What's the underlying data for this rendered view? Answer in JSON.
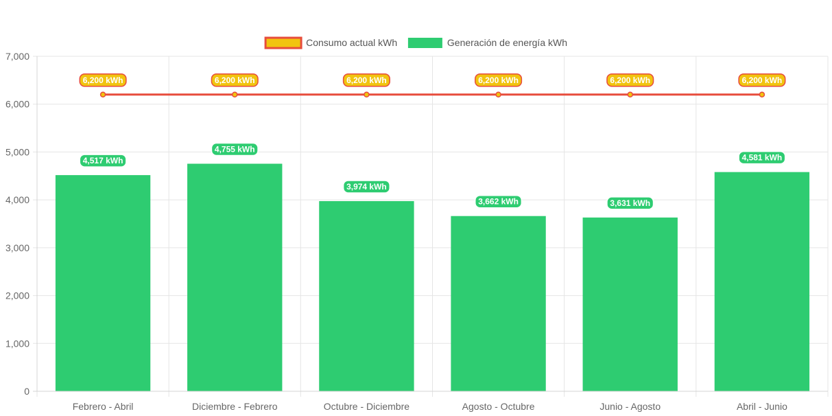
{
  "chart_data": {
    "type": "bar",
    "categories": [
      "Febrero - Abril",
      "Diciembre - Febrero",
      "Octubre - Diciembre",
      "Agosto - Octubre",
      "Junio - Agosto",
      "Abril - Junio"
    ],
    "series": [
      {
        "name": "Consumo actual kWh",
        "kind": "line",
        "values": [
          6200,
          6200,
          6200,
          6200,
          6200,
          6200
        ],
        "labels": [
          "6,200 kWh",
          "6,200 kWh",
          "6,200 kWh",
          "6,200 kWh",
          "6,200 kWh",
          "6,200 kWh"
        ],
        "color": "#e74c3c",
        "fill": "#f1c40f"
      },
      {
        "name": "Generación de energía kWh",
        "kind": "bar",
        "values": [
          4517,
          4755,
          3974,
          3662,
          3631,
          4581
        ],
        "labels": [
          "4,517 kWh",
          "4,755 kWh",
          "3,974 kWh",
          "3,662 kWh",
          "3,631 kWh",
          "4,581 kWh"
        ],
        "color": "#2ecc71"
      }
    ],
    "ylim": [
      0,
      7000
    ],
    "yticks": [
      0,
      1000,
      2000,
      3000,
      4000,
      5000,
      6000,
      7000
    ],
    "ytick_labels": [
      "0",
      "1,000",
      "2,000",
      "3,000",
      "4,000",
      "5,000",
      "6,000",
      "7,000"
    ],
    "grid": true,
    "legend_position": "top"
  }
}
